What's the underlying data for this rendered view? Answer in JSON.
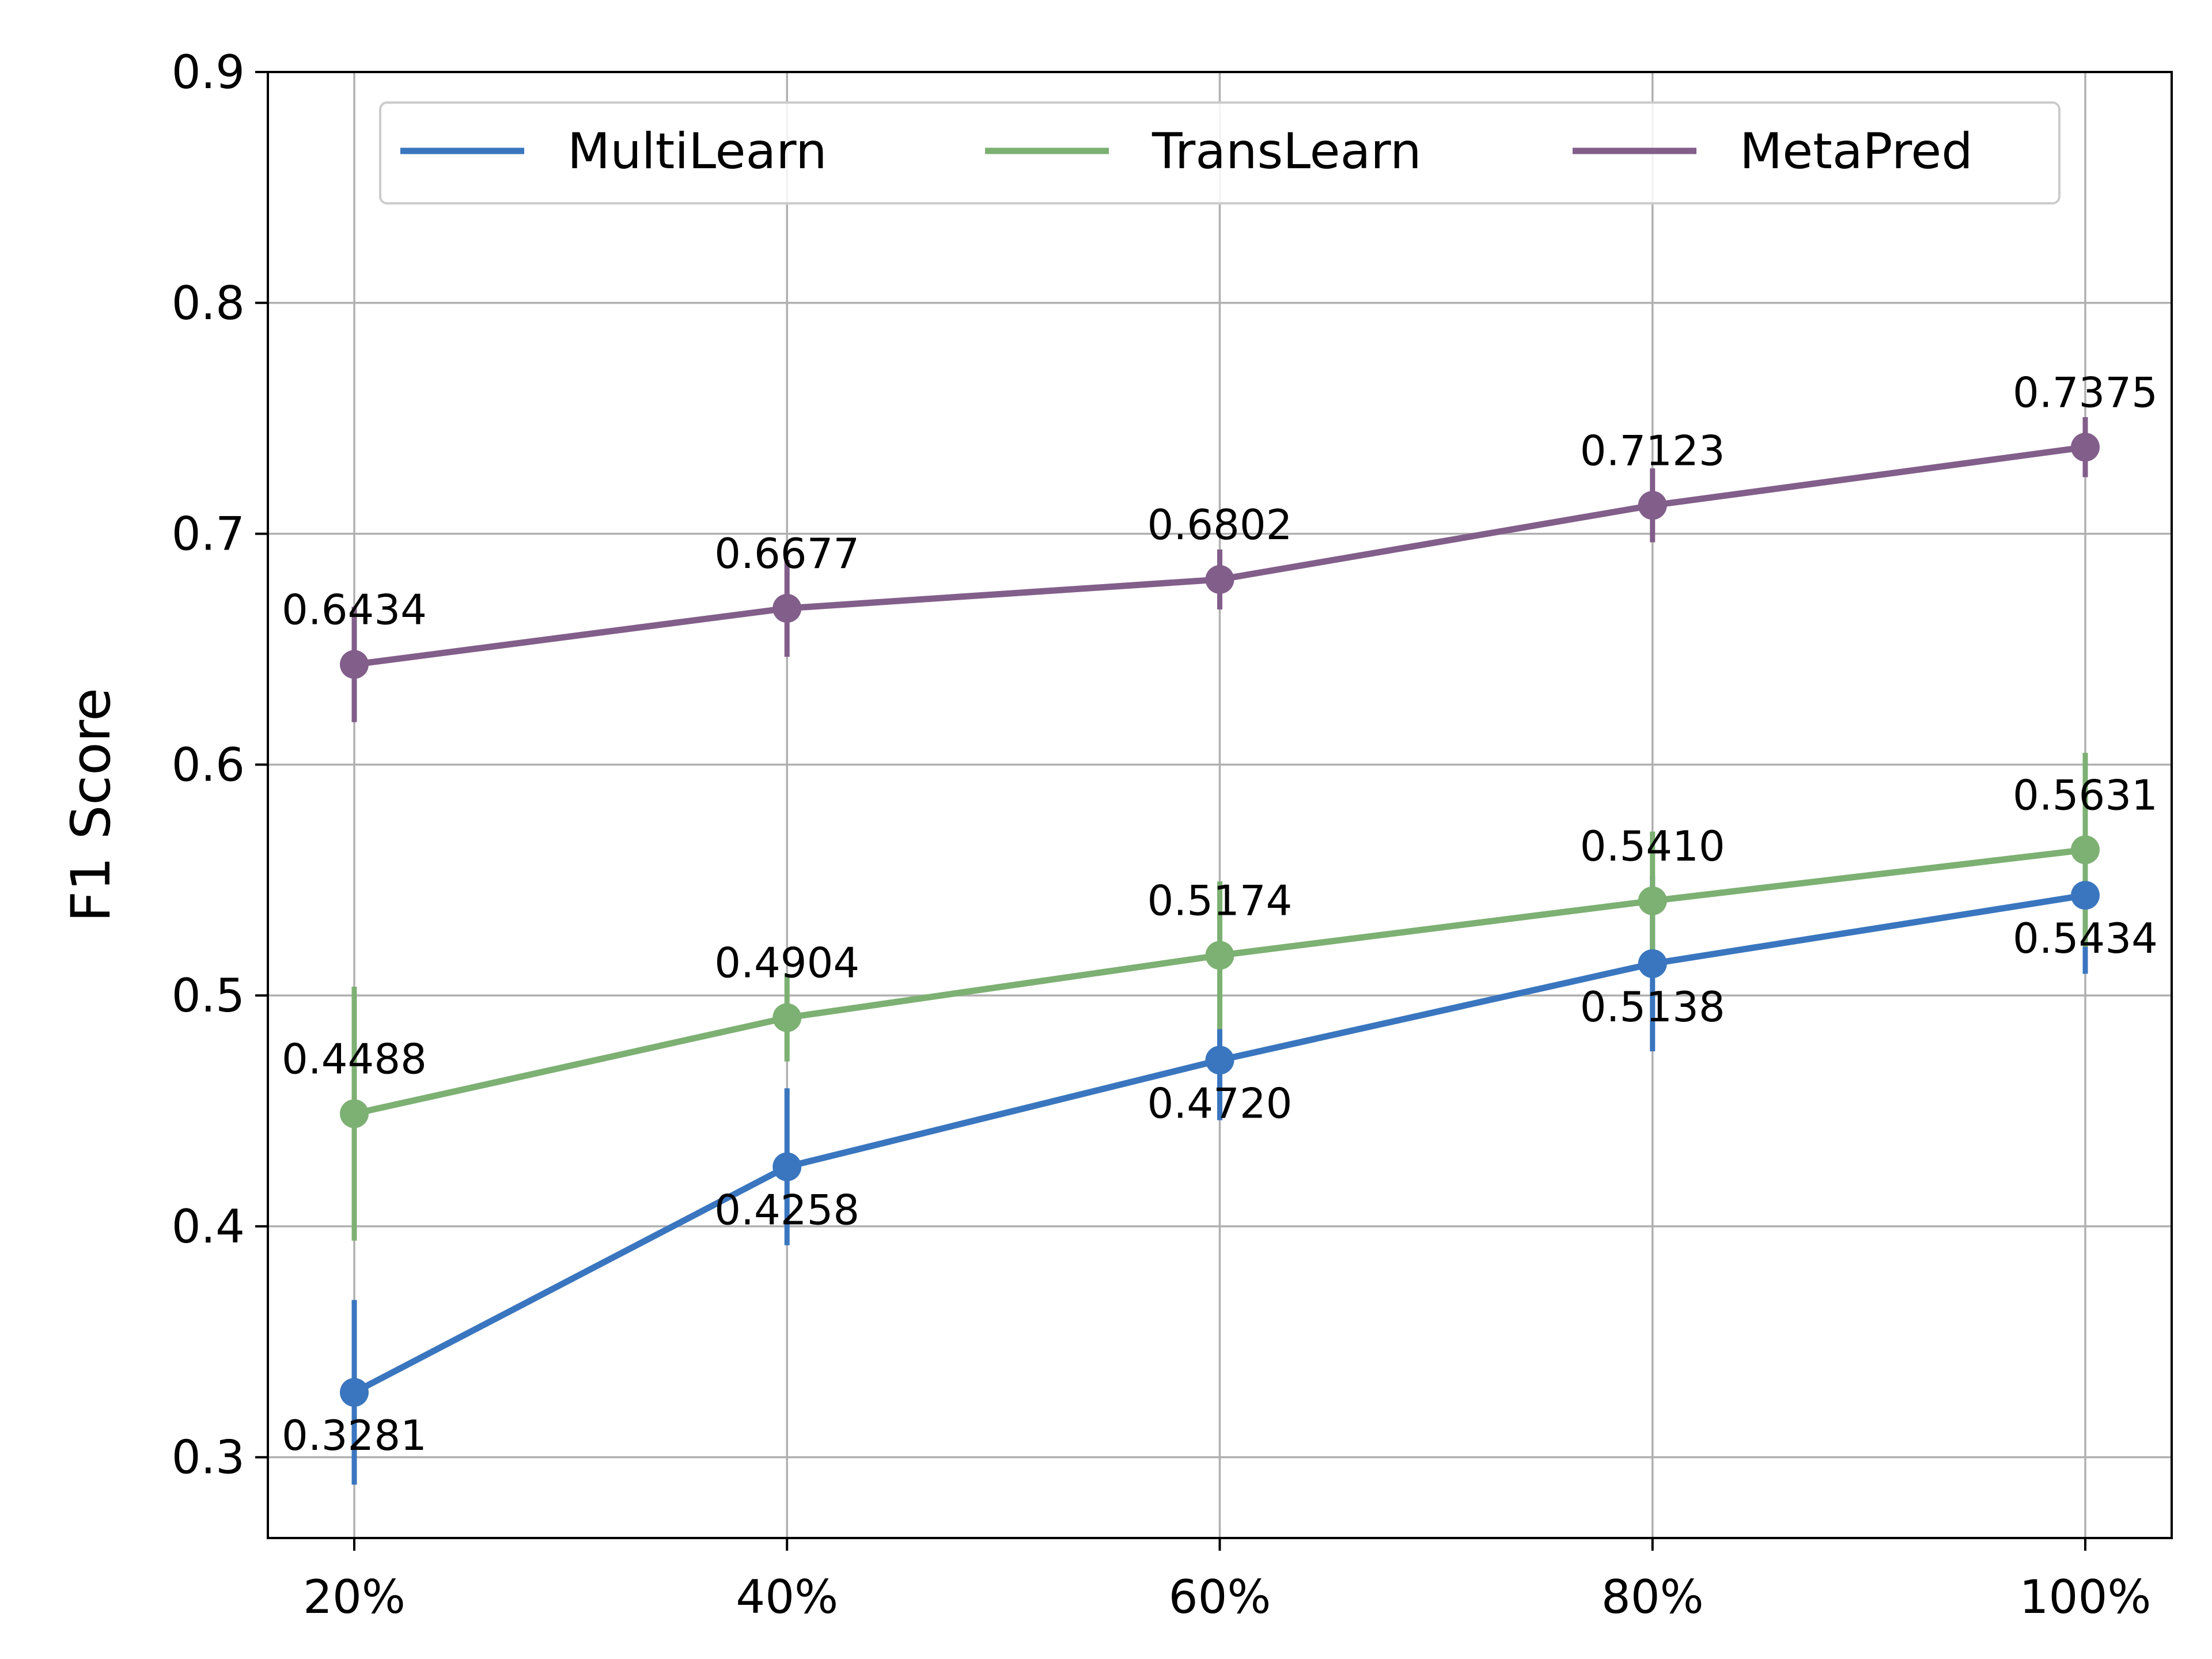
{
  "chart_data": {
    "type": "line",
    "title": "",
    "xlabel": "",
    "ylabel": "F1 Score",
    "categories": [
      "20%",
      "40%",
      "60%",
      "80%",
      "100%"
    ],
    "ylim": [
      0.265,
      0.9
    ],
    "yticks": [
      0.3,
      0.4,
      0.5,
      0.6,
      0.7,
      0.8,
      0.9
    ],
    "ytick_labels": [
      "0.3",
      "0.4",
      "0.5",
      "0.6",
      "0.7",
      "0.8",
      "0.9"
    ],
    "grid": true,
    "legend_position": "top",
    "series": [
      {
        "name": "MultiLearn",
        "color": "#3a76bf",
        "values": [
          0.3281,
          0.4258,
          0.472,
          0.5138,
          0.5434
        ],
        "error": [
          0.04,
          0.034,
          0.026,
          0.038,
          0.034
        ],
        "labels": [
          "0.3281",
          "0.4258",
          "0.4720",
          "0.5138",
          "0.5434"
        ],
        "label_position": "below"
      },
      {
        "name": "TransLearn",
        "color": "#7db073",
        "values": [
          0.4488,
          0.4904,
          0.5174,
          0.541,
          0.5631
        ],
        "error": [
          0.055,
          0.019,
          0.032,
          0.03,
          0.042
        ],
        "labels": [
          "0.4488",
          "0.4904",
          "0.5174",
          "0.5410",
          "0.5631"
        ],
        "label_position": "above"
      },
      {
        "name": "MetaPred",
        "color": "#825e8a",
        "values": [
          0.6434,
          0.6677,
          0.6802,
          0.7123,
          0.7375
        ],
        "error": [
          0.025,
          0.021,
          0.013,
          0.016,
          0.013
        ],
        "labels": [
          "0.6434",
          "0.6677",
          "0.6802",
          "0.7123",
          "0.7375"
        ],
        "label_position": "above"
      }
    ]
  }
}
